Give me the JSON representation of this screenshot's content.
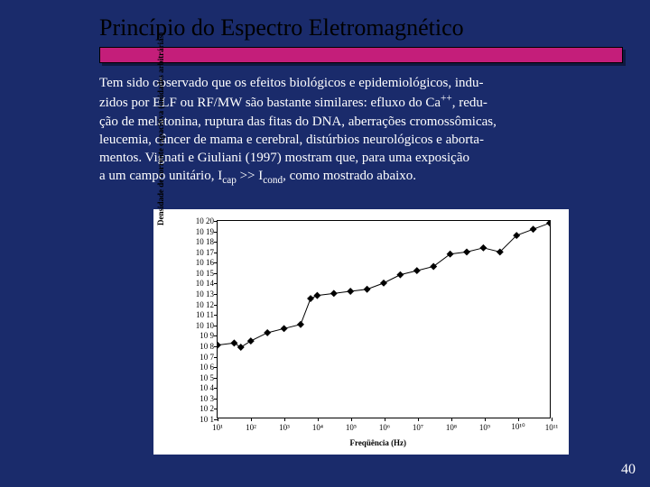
{
  "slide": {
    "title": "Princípio do Espectro Eletromagnético",
    "paragraph_parts": {
      "p1": "Tem sido observado que os efeitos biológicos e epidemiológicos, indu-",
      "p2": "zidos por ELF ou RF/MW são bastante similares: efluxo do Ca",
      "p2_sup": "++",
      "p2b": ", redu-",
      "p3": "ção de melatonina, ruptura das fitas do DNA, aberrações cromossômicas,",
      "p4": "leucemia, câncer de mama e cerebral, distúrbios neurológicos e aborta-",
      "p5": "mentos. Vignati e Giuliani (1997) mostram que, para uma exposição",
      "p6a": "a um campo unitário, I",
      "p6_sub1": "cap",
      "p6b": " >> I",
      "p6_sub2": "cond",
      "p6c": ", como mostrado abaixo."
    },
    "slide_number": "40"
  },
  "chart": {
    "type": "line",
    "background_color": "#ffffff",
    "line_color": "#000000",
    "marker": "diamond",
    "marker_size": 4,
    "line_width": 1,
    "xlabel": "Freqüência (Hz)",
    "ylabel": "Densidade de corrente capacitiva (unidades arbitrárias)",
    "xscale": "log",
    "yscale": "log",
    "xlim": [
      1,
      11
    ],
    "ylim": [
      1,
      20
    ],
    "xticks": [
      1,
      2,
      3,
      4,
      5,
      6,
      7,
      8,
      9,
      10,
      11
    ],
    "xtick_labels": [
      "10¹",
      "10²",
      "10³",
      "10⁴",
      "10⁵",
      "10⁶",
      "10⁷",
      "10⁸",
      "10⁹",
      "10¹⁰",
      "10¹¹"
    ],
    "yticks": [
      1,
      2,
      3,
      4,
      5,
      6,
      7,
      8,
      9,
      10,
      11,
      12,
      13,
      14,
      15,
      16,
      17,
      18,
      19,
      20
    ],
    "ytick_labels": [
      "10 1",
      "10 2",
      "10 3",
      "10 4",
      "10 5",
      "10 6",
      "10 7",
      "10 8",
      "10 9",
      "10 10",
      "10 11",
      "10 12",
      "10 13",
      "10 14",
      "10 15",
      "10 16",
      "10 17",
      "10 18",
      "10 19",
      "10 20"
    ],
    "label_fontsize": 9,
    "tick_fontsize": 9,
    "data": {
      "x": [
        1.0,
        1.5,
        1.7,
        2.0,
        2.5,
        3.0,
        3.5,
        3.8,
        4.0,
        4.5,
        5.0,
        5.5,
        6.0,
        6.5,
        7.0,
        7.5,
        8.0,
        8.5,
        9.0,
        9.5,
        10.0,
        10.5,
        11.0
      ],
      "y": [
        8.0,
        8.2,
        7.8,
        8.4,
        9.2,
        9.6,
        10.0,
        12.5,
        12.8,
        13.0,
        13.2,
        13.4,
        14.0,
        14.8,
        15.2,
        15.6,
        16.8,
        17.0,
        17.4,
        17.0,
        18.6,
        19.2,
        19.8
      ]
    }
  },
  "colors": {
    "slide_bg": "#1a2b6b",
    "title_text": "#000000",
    "bar_fill": "#c41e7a",
    "body_text": "#ffffff"
  }
}
